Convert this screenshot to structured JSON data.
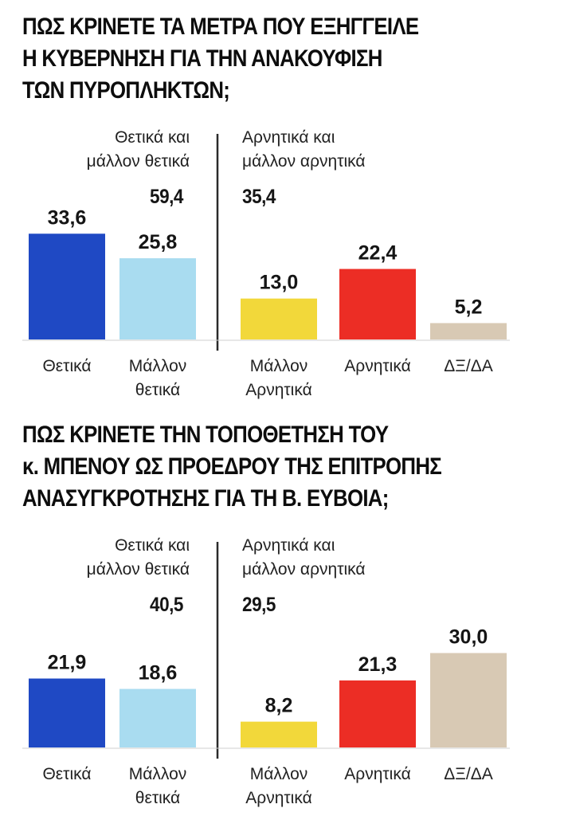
{
  "chart_data": [
    {
      "type": "bar",
      "title_lines": [
        "ΠΩΣ ΚΡΙΝΕΤΕ ΤΑ ΜΕΤΡΑ ΠΟΥ ΕΞΗΓΓΕΙΛΕ",
        "Η ΚΥΒΕΡΝΗΣΗ ΓΙΑ ΤΗΝ ΑΝΑΚΟΥΦΙΣΗ",
        "ΤΩΝ ΠΥΡΟΠΛΗΚΤΩΝ;"
      ],
      "groups": [
        {
          "label_lines": [
            "Θετικά και",
            "μάλλον θετικά"
          ],
          "total": "59,4"
        },
        {
          "label_lines": [
            "Αρνητικά και",
            "μάλλον αρνητικά"
          ],
          "total": "35,4"
        }
      ],
      "categories": [
        [
          "Θετικά"
        ],
        [
          "Μάλλον",
          "θετικά"
        ],
        [
          "Μάλλον",
          "Αρνητικά"
        ],
        [
          "Αρνητικά"
        ],
        [
          "ΔΞ/ΔΑ"
        ]
      ],
      "values": [
        33.6,
        25.8,
        13.0,
        22.4,
        5.2
      ],
      "value_labels": [
        "33,6",
        "25,8",
        "13,0",
        "22,4",
        "5,2"
      ],
      "colors": [
        "#1f49c4",
        "#a9dcf0",
        "#f2d83a",
        "#ec2d25",
        "#d8c9b4"
      ]
    },
    {
      "type": "bar",
      "title_lines": [
        "ΠΩΣ ΚΡΙΝΕΤΕ ΤΗΝ ΤΟΠΟΘΕΤΗΣΗ ΤΟΥ",
        "κ. ΜΠΕΝΟΥ ΩΣ ΠΡΟΕΔΡΟΥ ΤΗΣ ΕΠΙΤΡΟΠΗΣ",
        "ΑΝΑΣΥΓΚΡΟΤΗΣΗΣ ΓΙΑ ΤΗ Β. ΕΥΒΟΙΑ;"
      ],
      "groups": [
        {
          "label_lines": [
            "Θετικά και",
            "μάλλον θετικά"
          ],
          "total": "40,5"
        },
        {
          "label_lines": [
            "Αρνητικά και",
            "μάλλον αρνητικά"
          ],
          "total": "29,5"
        }
      ],
      "categories": [
        [
          "Θετικά"
        ],
        [
          "Μάλλον",
          "θετικά"
        ],
        [
          "Μάλλον",
          "Αρνητικά"
        ],
        [
          "Αρνητικά"
        ],
        [
          "ΔΞ/ΔΑ"
        ]
      ],
      "values": [
        21.9,
        18.6,
        8.2,
        21.3,
        30.0
      ],
      "value_labels": [
        "21,9",
        "18,6",
        "8,2",
        "21,3",
        "30,0"
      ],
      "colors": [
        "#1f49c4",
        "#a9dcf0",
        "#f2d83a",
        "#ec2d25",
        "#d8c9b4"
      ]
    }
  ]
}
